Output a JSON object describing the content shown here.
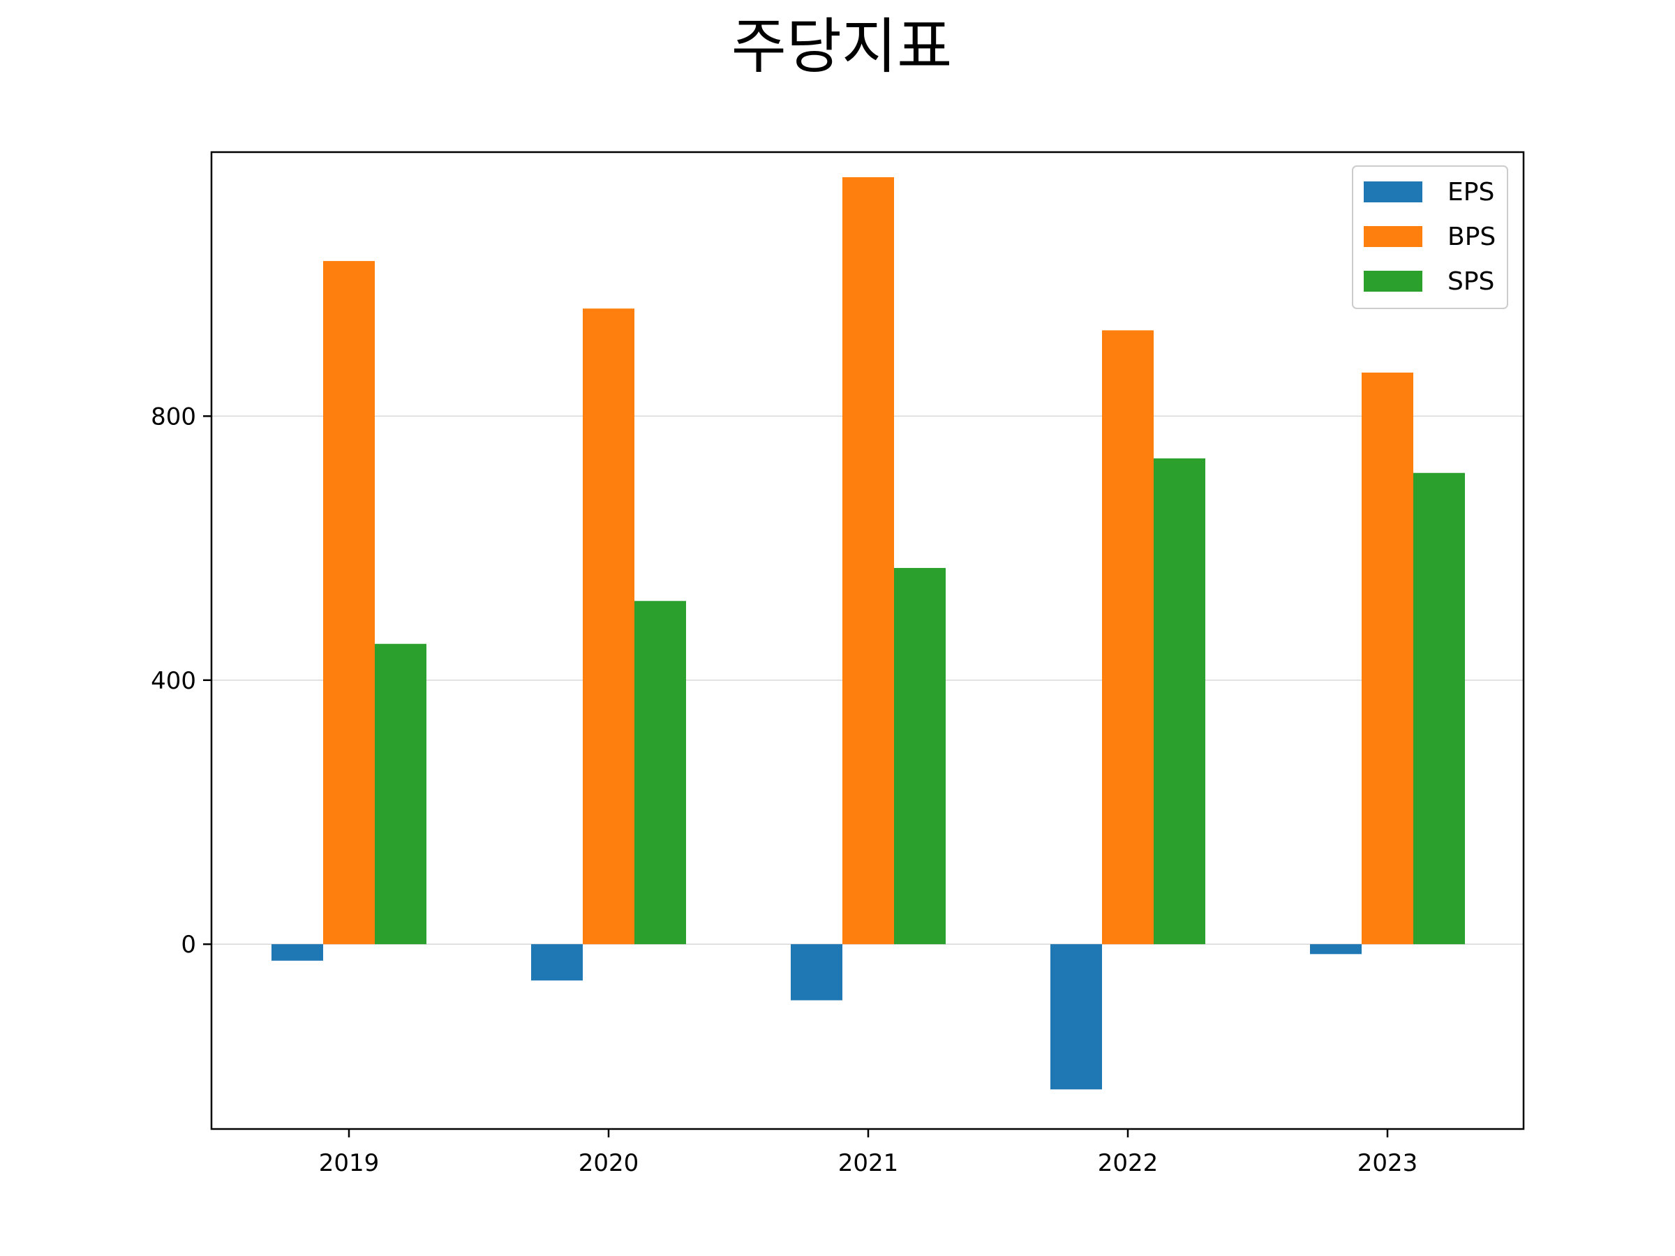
{
  "chart_data": {
    "type": "bar",
    "title": "주당지표",
    "xlabel": "",
    "ylabel": "",
    "categories": [
      "2019",
      "2020",
      "2021",
      "2022",
      "2023"
    ],
    "series": [
      {
        "name": "EPS",
        "color": "#1f77b4",
        "values": [
          -25,
          -55,
          -85,
          -220,
          -15
        ]
      },
      {
        "name": "BPS",
        "color": "#ff7f0e",
        "values": [
          1035,
          963,
          1162,
          930,
          866
        ]
      },
      {
        "name": "SPS",
        "color": "#2ca02c",
        "values": [
          455,
          520,
          570,
          736,
          714
        ]
      }
    ],
    "ylim": [
      -280,
      1200
    ],
    "yticks": [
      0,
      400,
      800
    ],
    "ytick_labels": [
      "0",
      "400",
      "800"
    ],
    "grid": "horizontal",
    "legend_position": "top-right"
  }
}
